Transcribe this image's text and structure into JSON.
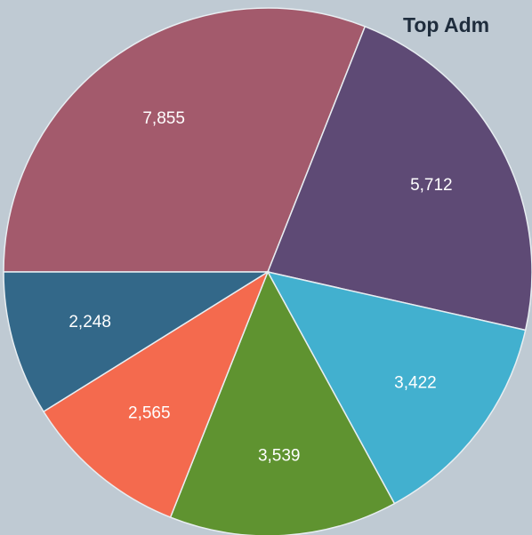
{
  "chart_data": {
    "type": "pie",
    "title": "Top Adm",
    "categories": [
      null,
      null,
      null,
      null,
      null,
      null
    ],
    "values": [
      7855,
      5712,
      3422,
      3539,
      2565,
      2248
    ],
    "value_labels": [
      "7,855",
      "5,712",
      "3,422",
      "3,539",
      "2,565",
      "2,248"
    ],
    "colors": [
      "#a35a6c",
      "#5e4a75",
      "#42b0cf",
      "#5f9330",
      "#f46a4e",
      "#336889"
    ]
  }
}
